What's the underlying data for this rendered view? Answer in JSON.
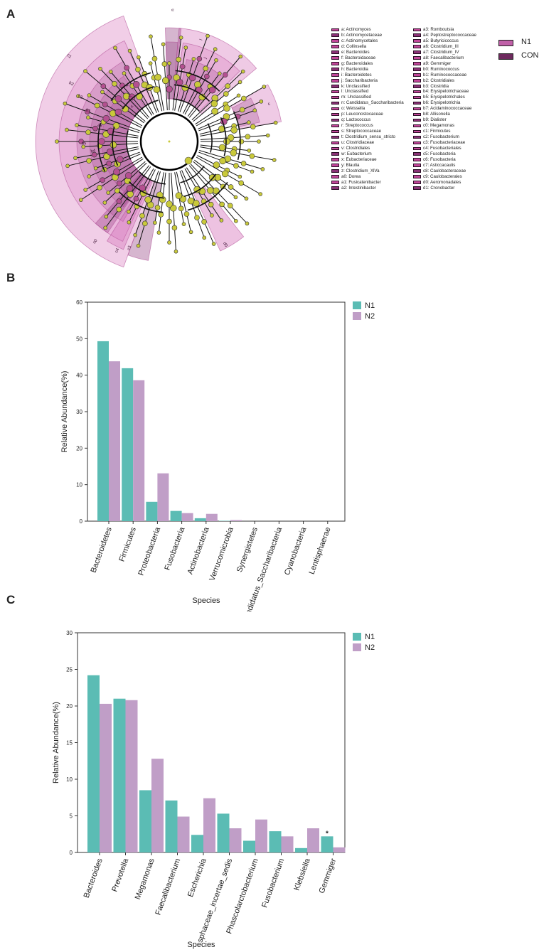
{
  "panels": {
    "a": "A",
    "b": "B",
    "c": "C"
  },
  "cladogram": {
    "group_legend": [
      {
        "name": "N1",
        "color": "#c060a8"
      },
      {
        "name": "CON",
        "color": "#6e2a5e"
      }
    ],
    "taxa_left": [
      "a: Actinomyces",
      "b: Actinomycetaceae",
      "c: Actinomycetales",
      "d: Collinsella",
      "e: Bacteroides",
      "f: Bacteroidaceae",
      "g: Bacteroidales",
      "h: Bacteroidia",
      "i: Bacteroidetes",
      "j: Saccharibacteria",
      "k: Unclassified",
      "l: Unclassified",
      "m: Unclassified",
      "n: Candidatus_Saccharibacteria",
      "o: Weissella",
      "p: Leuconostocaceae",
      "q: Lactococcus",
      "r: Streptococcus",
      "s: Streptococcaceae",
      "t: Clostridium_sensu_stricto",
      "u: Clostridiaceae",
      "v: Clostridiales",
      "w: Eubacterium",
      "x: Eubacteriaceae",
      "y: Blautia",
      "z: Clostridium_XlVa",
      "a0: Dorea",
      "a1: Fusicatenibacter",
      "a2: Intestinibacter"
    ],
    "taxa_right": [
      "a3: Romboutsia",
      "a4: Peptostreptococcaceae",
      "a5: Butyricicoccus",
      "a6: Clostridium_III",
      "a7: Clostridium_IV",
      "a8: Faecalibacterium",
      "a9: Gemmiger",
      "b0: Ruminococcus",
      "b1: Ruminococcaceae",
      "b2: Clostridiales",
      "b3: Clostridia",
      "b4: Erysipelotrichaceae",
      "b5: Erysipelotrichales",
      "b6: Erysipelotrichia",
      "b7: Acidaminococcaceae",
      "b8: Allisonella",
      "b9: Dialister",
      "c0: Megamonas",
      "c1: Firmicutes",
      "c2: Fusobacterium",
      "c3: Fusobacteriaceae",
      "c4: Fusobacteriales",
      "c5: Fusobacteria",
      "c6: Fusobacteria",
      "c7: Asticcacaulis",
      "c8: Caulobacteraceae",
      "c9: Caulobacterales",
      "d0: Aeromonadales",
      "d1: Cronobacter"
    ],
    "sector_labels": [
      "c1",
      "b3",
      "b2",
      "b1",
      "b5",
      "b4",
      "a8",
      "x",
      "v",
      "u",
      "c0",
      "c4",
      "c3",
      "n",
      "l",
      "j",
      "i",
      "c",
      "d0"
    ]
  },
  "chart_data": [
    {
      "type": "bar",
      "panel": "B",
      "categories": [
        "Bacteroidetes",
        "Firmicutes",
        "Proteobacteria",
        "Fusobacteria",
        "Actinobacteria",
        "Verrucomicrobia",
        "Synergistetes",
        "andidatus_Saccharibacteria",
        "Cyanobacteria",
        "Lentisphaerae"
      ],
      "series": [
        {
          "name": "N1",
          "color": "#5bbcb4",
          "values": [
            49.3,
            41.9,
            5.3,
            2.8,
            0.8,
            0.1,
            0.0,
            0.0,
            0.0,
            0.0
          ]
        },
        {
          "name": "N2",
          "color": "#c09ec7",
          "values": [
            43.8,
            38.6,
            13.1,
            2.2,
            2.0,
            0.3,
            0.0,
            0.0,
            0.0,
            0.0
          ]
        }
      ],
      "xlabel": "Species",
      "ylabel": "Relative Abundance(%)",
      "ylim": [
        0,
        60
      ],
      "yticks": [
        0,
        10,
        20,
        30,
        40,
        50,
        60
      ],
      "legend": "top-right"
    },
    {
      "type": "bar",
      "panel": "C",
      "categories": [
        "Bacteroides",
        "Prevotella",
        "Megamonas",
        "Faecalibacterium",
        "Escherichia",
        "sphaceae_incertae_sedis",
        "Phascolarctobacterium",
        "Fusobacterium",
        "Klebsiella",
        "Gemmiger"
      ],
      "series": [
        {
          "name": "N1",
          "color": "#5bbcb4",
          "values": [
            24.2,
            21.0,
            8.5,
            7.1,
            2.4,
            5.3,
            1.6,
            2.9,
            0.6,
            2.2
          ]
        },
        {
          "name": "N2",
          "color": "#c09ec7",
          "values": [
            20.3,
            20.8,
            12.8,
            4.9,
            7.4,
            3.3,
            4.5,
            2.2,
            3.3,
            0.7
          ]
        }
      ],
      "annotations": [
        {
          "category": "Gemmiger",
          "text": "*"
        }
      ],
      "xlabel": "Species",
      "ylabel": "Relative Abundance(%)",
      "ylim": [
        0,
        30
      ],
      "yticks": [
        0,
        5,
        10,
        15,
        20,
        25,
        30
      ],
      "legend": "top-right"
    }
  ]
}
